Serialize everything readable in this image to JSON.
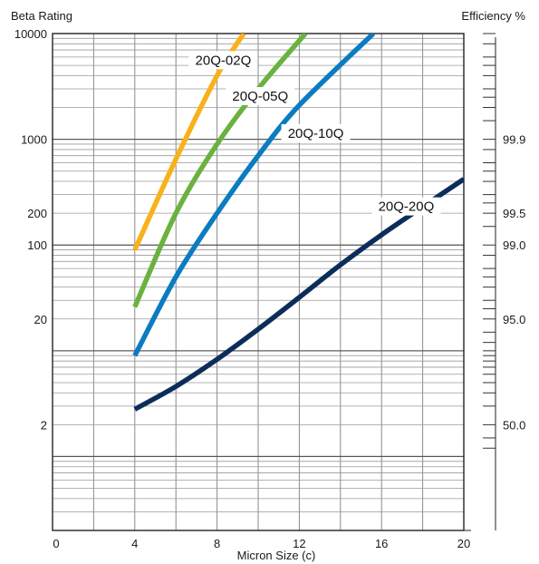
{
  "chart_data": {
    "type": "line",
    "title": "",
    "ylabel": "Beta Rating",
    "y2label": "Efficiency %",
    "xlabel": "Micron Size (c)",
    "xlim": [
      0,
      20
    ],
    "ylim": [
      0.2,
      10000
    ],
    "yscale": "log",
    "grid": true,
    "x_ticks": [
      {
        "value": 0,
        "label": "0"
      },
      {
        "value": 4,
        "label": "4"
      },
      {
        "value": 8,
        "label": "8"
      },
      {
        "value": 12,
        "label": "12"
      },
      {
        "value": 16,
        "label": "16"
      },
      {
        "value": 20,
        "label": "20"
      }
    ],
    "y_ticks": [
      {
        "value": 10000,
        "label": "10000",
        "color": "#1a1a1a"
      },
      {
        "value": 1000,
        "label": "1000",
        "color": "#d81e1e"
      },
      {
        "value": 200,
        "label": "200",
        "color": "#d81e1e"
      },
      {
        "value": 100,
        "label": "100",
        "color": "#1a1a1a"
      },
      {
        "value": 20,
        "label": "20",
        "color": "#1a1a1a"
      },
      {
        "value": 2,
        "label": "2",
        "color": "#1a1a1a"
      }
    ],
    "y2_ticks": [
      {
        "beta": 1000,
        "label": "99.9"
      },
      {
        "beta": 200,
        "label": "99.5"
      },
      {
        "beta": 100,
        "label": "99.0"
      },
      {
        "beta": 20,
        "label": "95.0"
      },
      {
        "beta": 2,
        "label": "50.0"
      }
    ],
    "series": [
      {
        "name": "20Q-02Q",
        "color": "#f7b21b",
        "points": [
          [
            4,
            90
          ],
          [
            6,
            650
          ],
          [
            8,
            4000
          ],
          [
            9.3,
            10000
          ]
        ]
      },
      {
        "name": "20Q-05Q",
        "color": "#6ab23e",
        "points": [
          [
            4,
            26
          ],
          [
            6,
            200
          ],
          [
            8,
            900
          ],
          [
            10,
            3000
          ],
          [
            12.3,
            10000
          ]
        ]
      },
      {
        "name": "20Q-10Q",
        "color": "#0b7cc1",
        "points": [
          [
            4,
            9
          ],
          [
            6,
            50
          ],
          [
            8,
            200
          ],
          [
            10,
            700
          ],
          [
            12,
            2100
          ],
          [
            15.6,
            10000
          ]
        ]
      },
      {
        "name": "20Q-20Q",
        "color": "#0c2d5a",
        "points": [
          [
            4,
            2.8
          ],
          [
            6,
            4.6
          ],
          [
            8,
            8.3
          ],
          [
            10,
            16
          ],
          [
            12,
            32
          ],
          [
            14,
            65
          ],
          [
            16,
            125
          ],
          [
            18,
            230
          ],
          [
            20,
            420
          ]
        ]
      }
    ],
    "series_labels": [
      {
        "name": "20Q-02Q",
        "x": 8.3,
        "y": 5600
      },
      {
        "name": "20Q-05Q",
        "x": 10.1,
        "y": 2560
      },
      {
        "name": "20Q-10Q",
        "x": 12.8,
        "y": 1140
      },
      {
        "name": "20Q-20Q",
        "x": 17.2,
        "y": 232
      }
    ]
  }
}
